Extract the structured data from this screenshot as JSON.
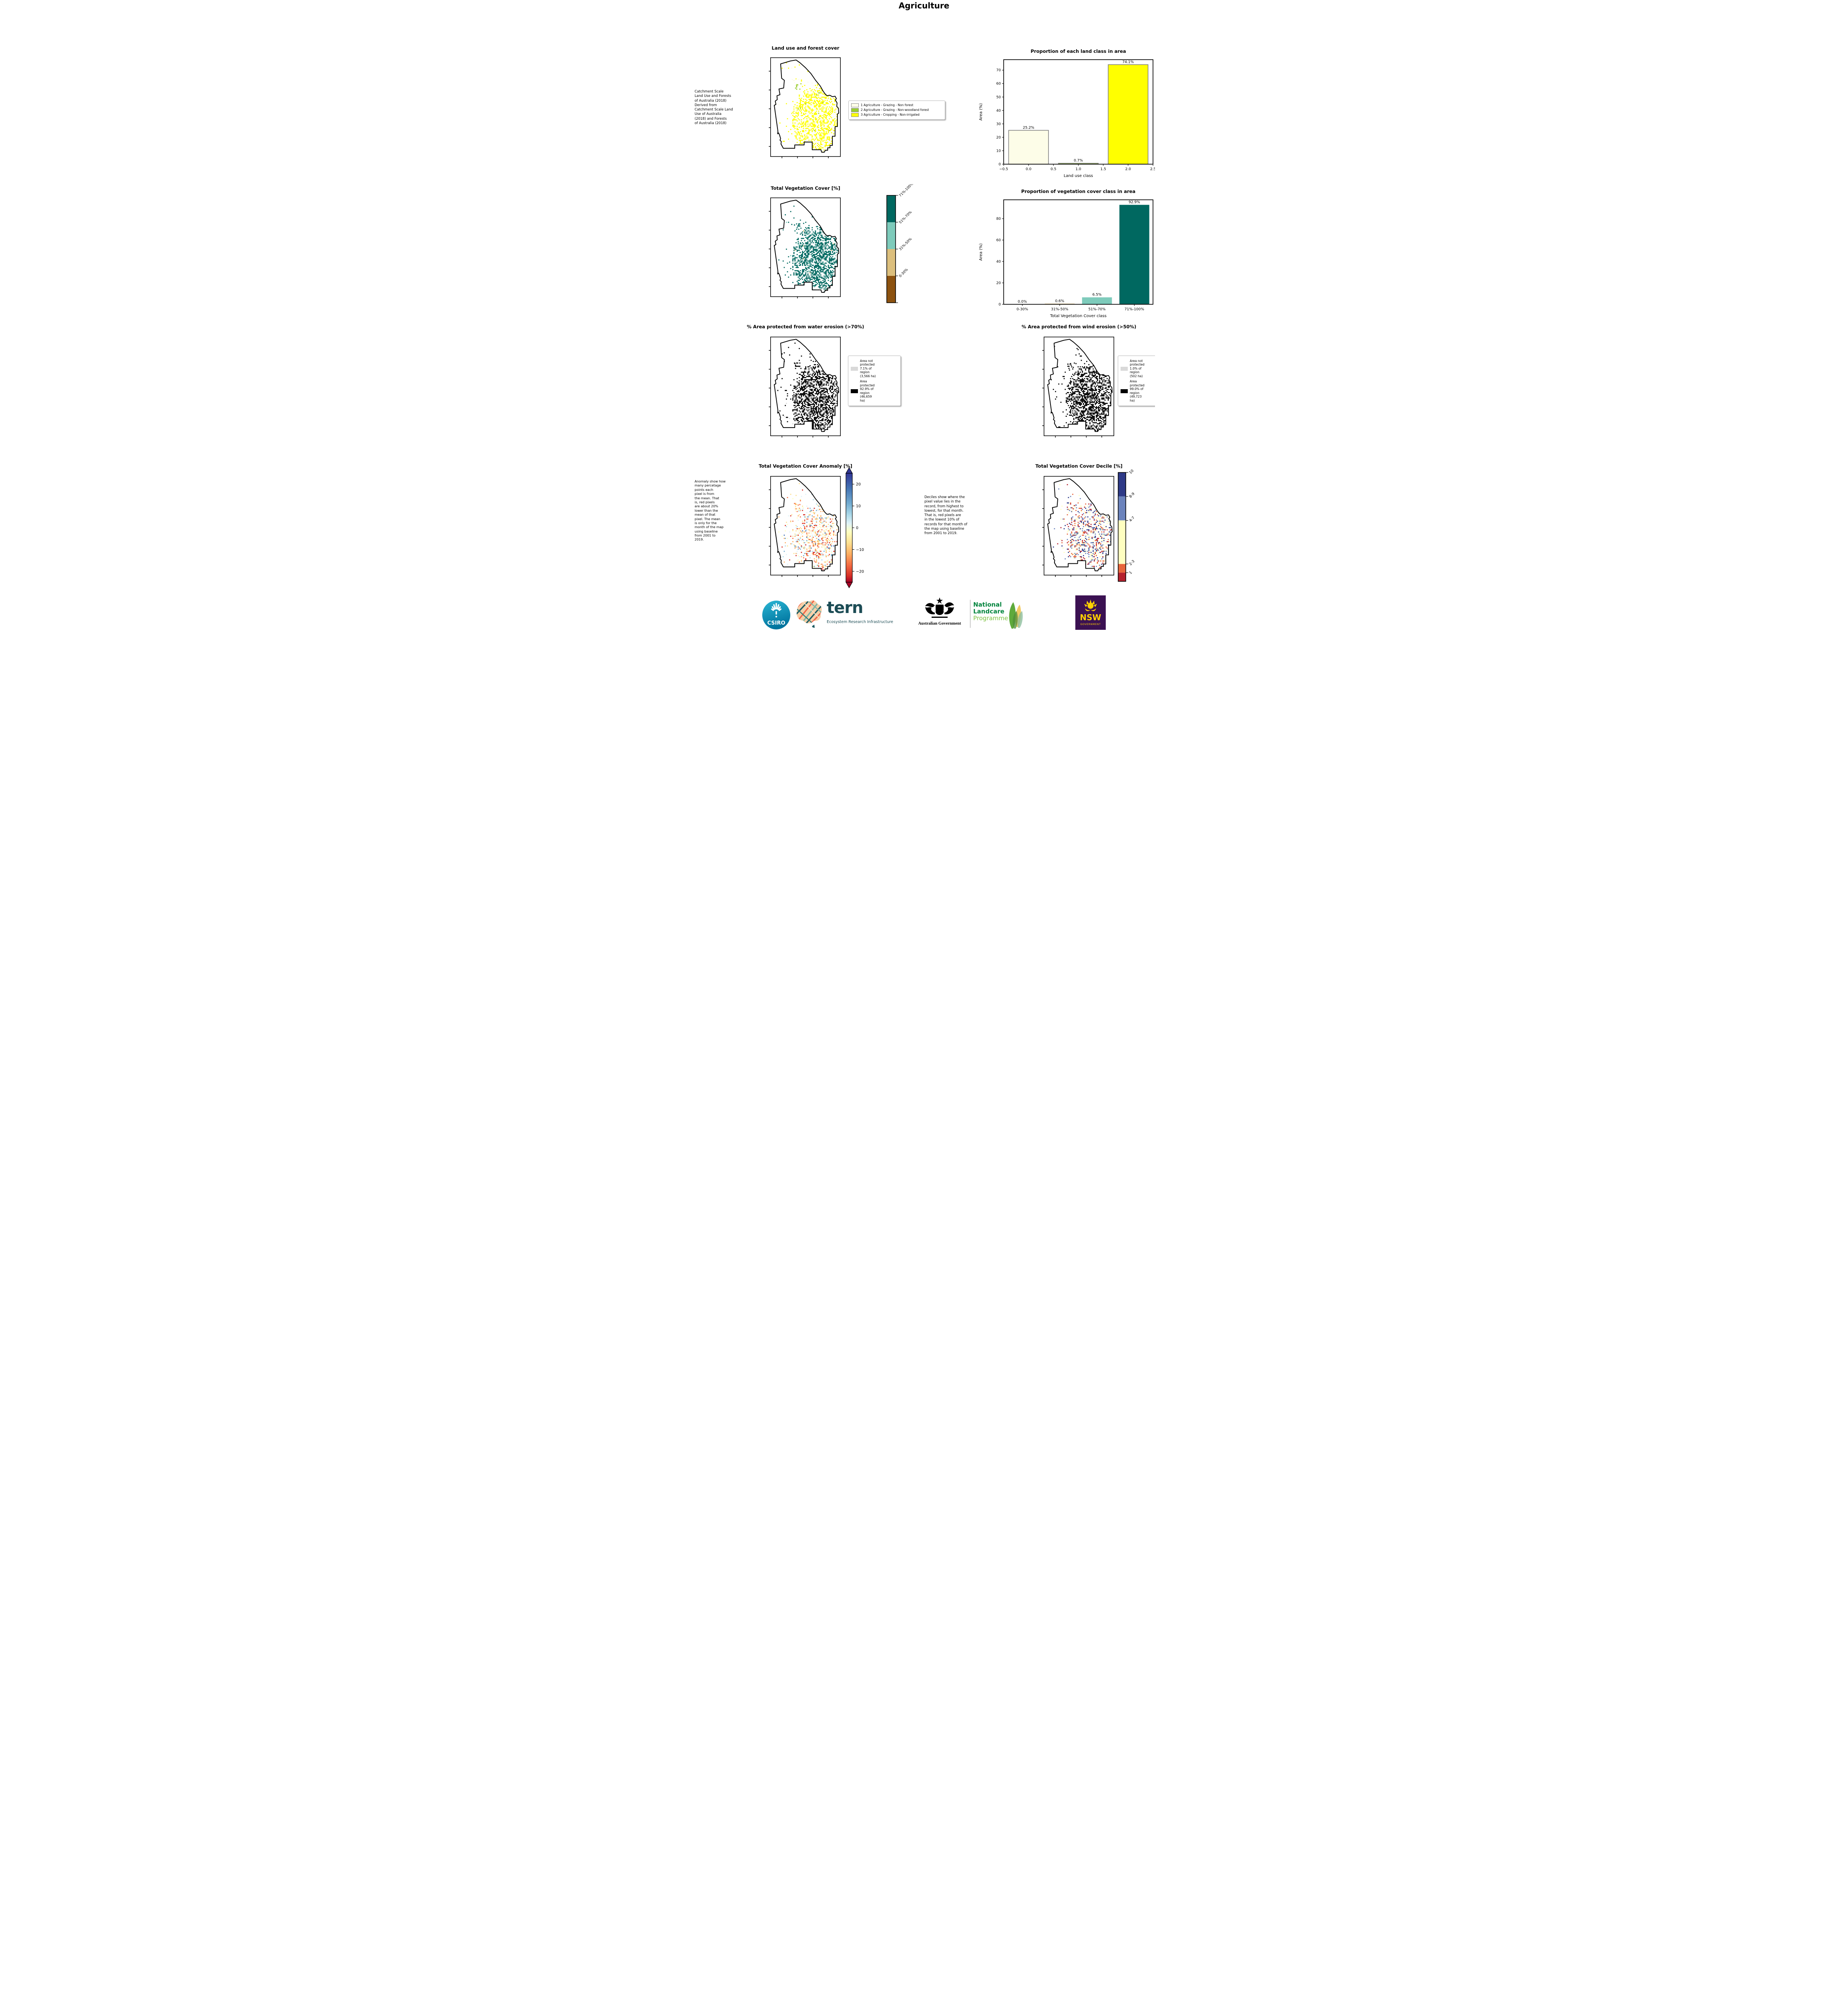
{
  "title": "Agriculture",
  "row1": {
    "map_title": "Land use and forest cover",
    "note": " Catchment Scale\nLand Use and Forests\nof Australia (2018)\nDerived from\nCatchment Scale Land\nUse of Australia\n(2018) and Forests\nof Australia (2018)",
    "legend": [
      {
        "label": "1 Agriculture - Grazing - Non forest",
        "color": "#FDFDE8"
      },
      {
        "label": "2 Agriculture - Grazing - Non-woodland forest",
        "color": "#9ACD32"
      },
      {
        "label": "3 Agriculture - Cropping - Non-irrigated",
        "color": "#FFFF00"
      }
    ]
  },
  "row2": {
    "map_title": "Total Vegetation Cover [%]",
    "colorbar": [
      {
        "label": "71%-100%",
        "color": "#006860"
      },
      {
        "label": "51%-70%",
        "color": "#7ECBBB"
      },
      {
        "label": "31%-50%",
        "color": "#DCBF7D"
      },
      {
        "label": "0-30%",
        "color": "#8C5210"
      }
    ]
  },
  "row3": {
    "left_title": "% Area protected from water erosion (>70%)",
    "right_title": "% Area protected from wind erosion (>50%)",
    "left_legend": [
      {
        "label": "Area not\nprotected\n7.1% of\nregion\n(3,566 ha)",
        "color": "#D9D9D9"
      },
      {
        "label": "Area\nprotected\n92.9% of\nregion\n(46,659\nha)",
        "color": "#000000"
      }
    ],
    "right_legend": [
      {
        "label": "Area not\nprotected\n1.0% of\nregion\n(502 ha)",
        "color": "#D9D9D9"
      },
      {
        "label": "Area\nprotected\n99.0% of\nregion\n(49,723\nha)",
        "color": "#000000"
      }
    ]
  },
  "row4": {
    "left_title": "Total Vegetation Cover Anomaly [%]",
    "right_title": "Total Vegetation Cover Decile [%]",
    "left_note": "Anomaly show how\nmany percetage\npoints each\npixel is from\nthe mean. That\nis, red pixels\nare about 20%\nlower than the\nmean of that\npixel. The mean\nis only for the\nmonth of the map\nusing baseline\nfrom 2001 to\n2019.",
    "middle_note": "Deciles show where the\npixel value lies in the\nrecord, from highest to\nlowest, for that month.\nThat is, red pixels are\nin the lowest 10% of\nrecords for that month of\nthe map using baseline\nfrom 2001 to 2019.",
    "anomaly_ticks": [
      "20",
      "10",
      "0",
      "−10",
      "−20"
    ],
    "decile_labels": [
      {
        "label": "10",
        "color": "#2E3A87"
      },
      {
        "label": "8-9",
        "color": "#6B83BC"
      },
      {
        "label": "4-7",
        "color": "#FFFFC0"
      },
      {
        "label": "2-3",
        "color": "#E8663C"
      },
      {
        "label": "1",
        "color": "#B5212E"
      }
    ]
  },
  "chart_data": [
    {
      "type": "bar",
      "title": "Proportion of each land class in area",
      "xlabel": "Land use class",
      "ylabel": "Area (%)",
      "xlim": [
        -0.5,
        2.5
      ],
      "ylim": [
        0,
        77.8
      ],
      "x": [
        0,
        1,
        2
      ],
      "bar_width": 0.8,
      "values": [
        25.2,
        0.7,
        74.1
      ],
      "value_labels": [
        "25.2%",
        "0.7%",
        "74.1%"
      ],
      "colors": [
        "#FDFDE8",
        "#9ACD32",
        "#FFFF00"
      ],
      "edge": "#7f7f7f",
      "xticks": [
        -0.5,
        0,
        0.5,
        1,
        1.5,
        2,
        2.5
      ],
      "xtick_labels": [
        "−0.5",
        "0.0",
        "0.5",
        "1.0",
        "1.5",
        "2.0",
        "2.5"
      ],
      "yticks": [
        0,
        10,
        20,
        30,
        40,
        50,
        60,
        70
      ]
    },
    {
      "type": "bar",
      "title": "Proportion of vegetation cover class in area",
      "xlabel": "Total Vegetation Cover class",
      "ylabel": "Area (%)",
      "xlim": [
        0,
        4
      ],
      "ylim": [
        0,
        97.6
      ],
      "x": [
        0.5,
        1.5,
        2.5,
        3.5
      ],
      "bar_width": 0.8,
      "values": [
        0.0,
        0.6,
        6.5,
        92.9
      ],
      "value_labels": [
        "0.0%",
        "0.6%",
        "6.5%",
        "92.9%"
      ],
      "colors": [
        "#8C5210",
        "#DCBF7D",
        "#7ECBBB",
        "#006860"
      ],
      "edge": null,
      "categories": [
        "0-30%",
        "31%-50%",
        "51%-70%",
        "71%-100%"
      ],
      "xticks": [
        0.5,
        1.5,
        2.5,
        3.5
      ],
      "xtick_labels": [
        "0-30%",
        "31%-50%",
        "51%-70%",
        "71%-100%"
      ],
      "yticks": [
        0,
        20,
        40,
        60,
        80
      ]
    }
  ],
  "footer": {
    "csiro": "CSIRO",
    "tern": "tern",
    "tern_sub": "Ecosystem Research Infrastructure",
    "ausgov": "Australian Government",
    "landcare1": "National",
    "landcare2": "Landcare",
    "landcare3": "Programme",
    "nsw": "NSW",
    "nsw_sub": "GOVERNMENT"
  }
}
